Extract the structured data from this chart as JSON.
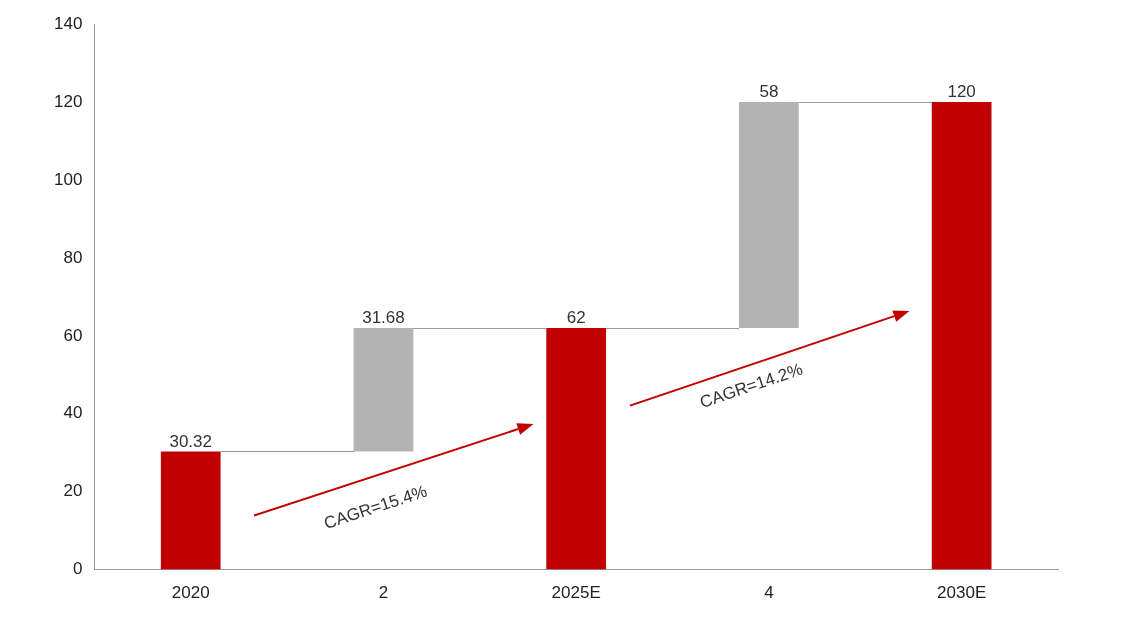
{
  "chart_data": {
    "type": "bar",
    "categories": [
      "2020",
      "2",
      "2025E",
      "4",
      "2030E"
    ],
    "values": [
      30.32,
      31.68,
      62,
      58,
      120
    ],
    "base": [
      0,
      30.32,
      0,
      62,
      0
    ],
    "colors": [
      "#c00000",
      "#b3b3b3",
      "#c00000",
      "#b3b3b3",
      "#c00000"
    ],
    "ylim": [
      0,
      140
    ],
    "yticks": [
      0,
      20,
      40,
      60,
      80,
      100,
      120,
      140
    ],
    "grid": false,
    "legend": false,
    "data_labels": true,
    "annotations": [
      "CAGR=15.4%",
      "CAGR=14.2%"
    ]
  }
}
